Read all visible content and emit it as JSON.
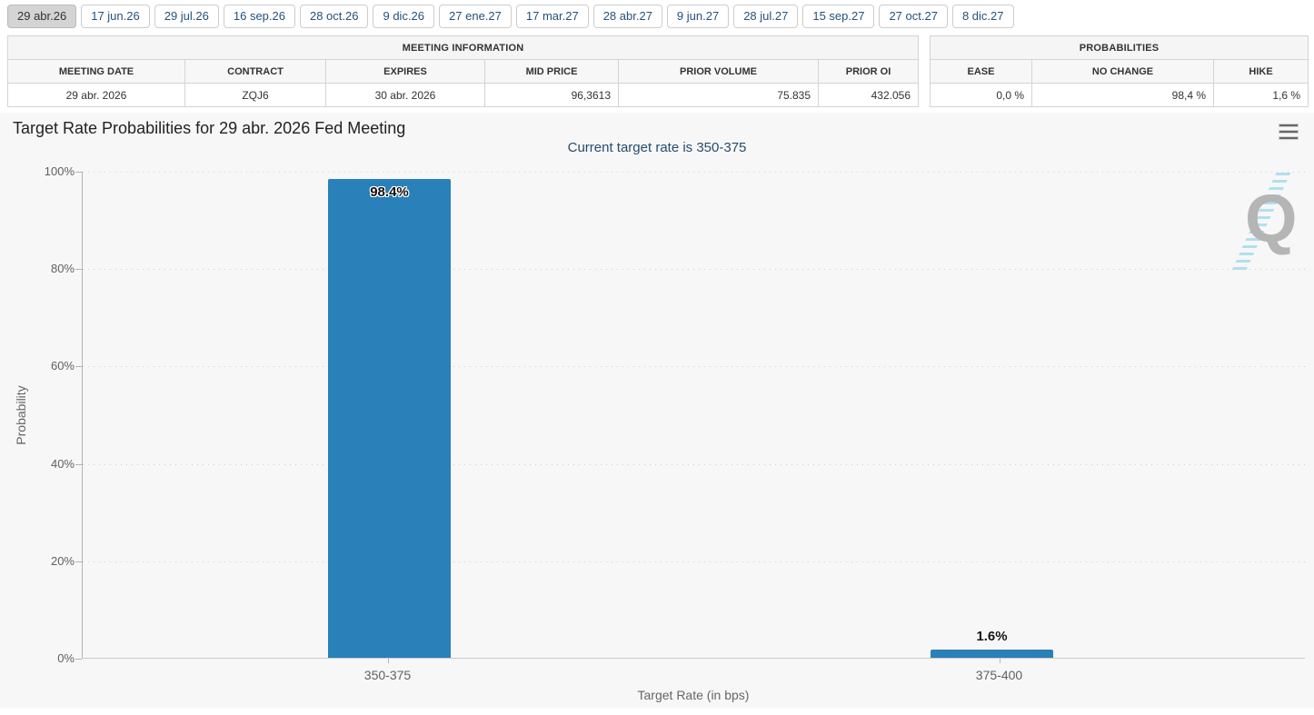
{
  "tabs": [
    "29 abr.26",
    "17 jun.26",
    "29 jul.26",
    "16 sep.26",
    "28 oct.26",
    "9 dic.26",
    "27 ene.27",
    "17 mar.27",
    "28 abr.27",
    "9 jun.27",
    "28 jul.27",
    "15 sep.27",
    "27 oct.27",
    "8 dic.27"
  ],
  "meeting_info": {
    "title": "MEETING INFORMATION",
    "headers": [
      "MEETING DATE",
      "CONTRACT",
      "EXPIRES",
      "MID PRICE",
      "PRIOR VOLUME",
      "PRIOR OI"
    ],
    "row": [
      "29 abr. 2026",
      "ZQJ6",
      "30 abr. 2026",
      "96,3613",
      "75.835",
      "432.056"
    ]
  },
  "probabilities": {
    "title": "PROBABILITIES",
    "headers": [
      "EASE",
      "NO CHANGE",
      "HIKE"
    ],
    "row": [
      "0,0 %",
      "98,4 %",
      "1,6 %"
    ]
  },
  "chart_data": {
    "type": "bar",
    "title": "Target Rate Probabilities for 29 abr. 2026 Fed Meeting",
    "subtitle": "Current target rate is 350-375",
    "categories": [
      "350-375",
      "375-400"
    ],
    "values": [
      98.4,
      1.6
    ],
    "data_labels": [
      "98.4%",
      "1.6%"
    ],
    "xlabel": "Target Rate (in bps)",
    "ylabel": "Probability",
    "ylim": [
      0,
      100
    ],
    "yticks": [
      "100%",
      "80%",
      "60%",
      "40%",
      "20%",
      "0%"
    ],
    "grid": "dotted horizontal",
    "legend": "none",
    "bar_color": "#2a80b9",
    "plot_background": "#f7f7f7",
    "watermark_letter": "Q"
  },
  "icons": {
    "menu": "hamburger-icon",
    "watermark": "quikstrike-q-logo"
  }
}
